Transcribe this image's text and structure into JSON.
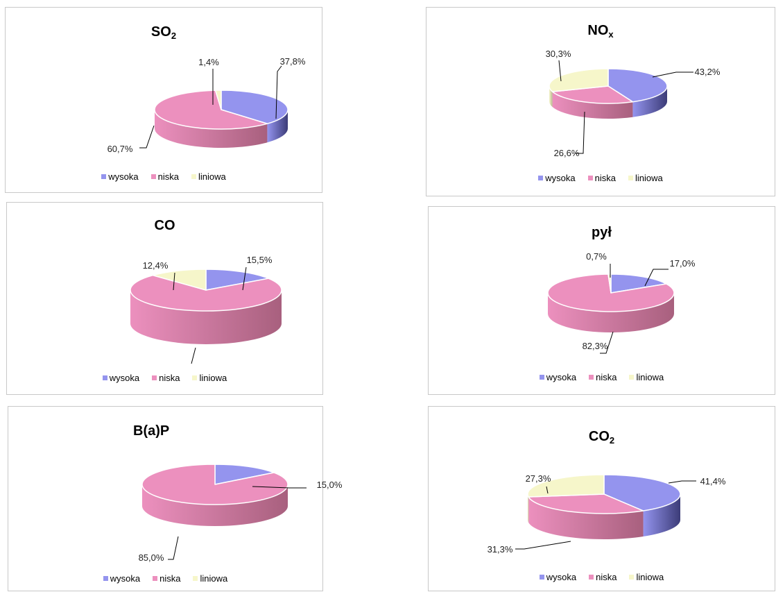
{
  "colors": {
    "wysoka": "#9494ee",
    "wysoka_side": "#3c3c78",
    "niska": "#ec90be",
    "niska_side": "#a8607e",
    "liniowa": "#f6f6ca",
    "liniowa_side": "#b8b890"
  },
  "legend": [
    "wysoka",
    "niska",
    "liniowa"
  ],
  "chart_data": [
    {
      "type": "pie",
      "title": {
        "main": "SO",
        "sub": "2"
      },
      "categories": [
        "wysoka",
        "niska",
        "liniowa"
      ],
      "values": [
        37.8,
        60.7,
        1.4
      ],
      "labels": [
        "37,8%",
        "60,7%",
        "1,4%"
      ]
    },
    {
      "type": "pie",
      "title": {
        "main": "NO",
        "sub": "x"
      },
      "categories": [
        "wysoka",
        "niska",
        "liniowa"
      ],
      "values": [
        43.2,
        26.6,
        30.3
      ],
      "labels": [
        "43,2%",
        "26,6%",
        "30,3%"
      ]
    },
    {
      "type": "pie",
      "title": {
        "main": "CO",
        "sub": ""
      },
      "categories": [
        "wysoka",
        "niska",
        "liniowa"
      ],
      "values": [
        15.5,
        72.1,
        12.4
      ],
      "labels": [
        "15,5%",
        "",
        "12,4%"
      ]
    },
    {
      "type": "pie",
      "title": {
        "main": "pył",
        "sub": ""
      },
      "categories": [
        "wysoka",
        "niska",
        "liniowa"
      ],
      "values": [
        17.0,
        82.3,
        0.7
      ],
      "labels": [
        "17,0%",
        "82,3%",
        "0,7%"
      ]
    },
    {
      "type": "pie",
      "title": {
        "main": "B(a)P",
        "sub": ""
      },
      "categories": [
        "wysoka",
        "niska",
        "liniowa"
      ],
      "values": [
        15.0,
        85.0,
        0.0
      ],
      "labels": [
        "15,0%",
        "85,0%",
        ""
      ]
    },
    {
      "type": "pie",
      "title": {
        "main": "CO",
        "sub": "2"
      },
      "categories": [
        "wysoka",
        "niska",
        "liniowa"
      ],
      "values": [
        41.4,
        31.3,
        27.3
      ],
      "labels": [
        "41,4%",
        "31,3%",
        "27,3%"
      ]
    }
  ]
}
